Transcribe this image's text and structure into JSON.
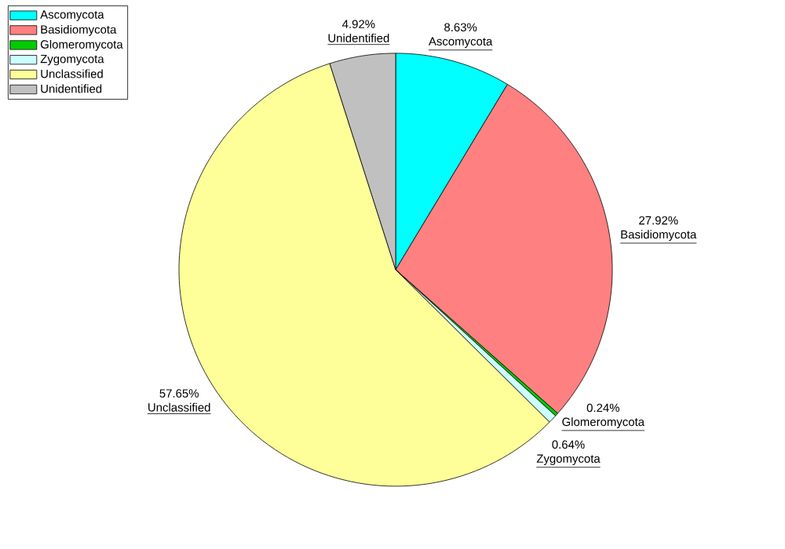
{
  "chart_data": {
    "type": "pie",
    "categories": [
      "Ascomycota",
      "Basidiomycota",
      "Glomeromycota",
      "Zygomycota",
      "Unclassified",
      "Unidentified"
    ],
    "values": [
      8.63,
      27.92,
      0.24,
      0.64,
      57.65,
      4.92
    ],
    "colors": [
      "#00ffff",
      "#ff8080",
      "#00cc00",
      "#ccffff",
      "#ffff99",
      "#c0c0c0"
    ],
    "value_labels": [
      "8.63%",
      "27.92%",
      "0.24%",
      "0.64%",
      "57.65%",
      "4.92%"
    ],
    "legend": "top left"
  }
}
